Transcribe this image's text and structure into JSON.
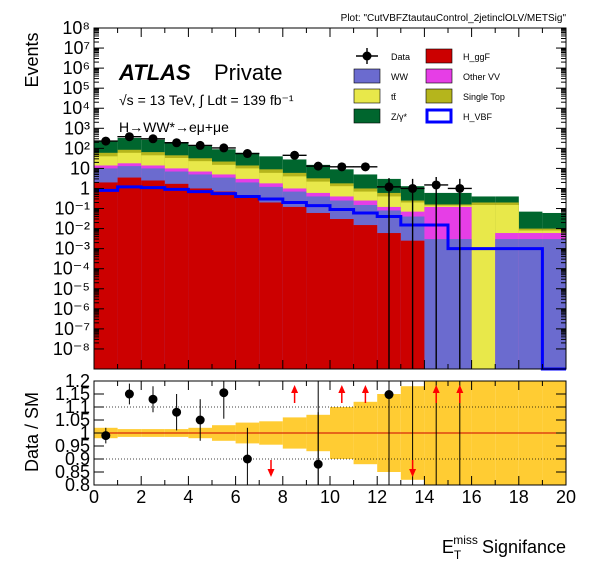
{
  "plot_label": "Plot: \"CutVBFZtautauControl_2jetinclOLV/METSig\"",
  "atlas": {
    "brand": "ATLAS",
    "status": "Private"
  },
  "energy_text": "√s = 13 TeV, ∫ Ldt = 139 fb⁻¹",
  "process_text": "H→WW*→eμ+μe",
  "colors": {
    "ggF": "#cc0000",
    "WW": "#6b6bcf",
    "OtherVV": "#e63ee6",
    "ttbar": "#e8e84a",
    "SingleTop": "#b5b51c",
    "Zgamma": "#00662e",
    "VBF": "#0000ff",
    "band": "#ffcc33",
    "ratio_line": "#cc0000"
  },
  "chart_data": [
    {
      "type": "area",
      "subtype": "stacked-histogram",
      "ylabel": "Events",
      "yscale": "log",
      "ylim": [
        1e-09,
        100000000.0
      ],
      "xlim": [
        0,
        20
      ],
      "bin_edges": [
        0,
        1,
        2,
        3,
        4,
        5,
        6,
        7,
        8,
        9,
        10,
        11,
        12,
        13,
        14,
        15,
        16,
        17,
        18,
        19,
        20
      ],
      "y_tick_labels": [
        "10⁻⁸",
        "10⁻⁷",
        "10⁻⁶",
        "10⁻⁵",
        "10⁻⁴",
        "10⁻³",
        "10⁻²",
        "10⁻¹",
        "1",
        "10",
        "10²",
        "10³",
        "10⁴",
        "10⁵",
        "10⁶",
        "10⁷",
        "10⁸"
      ],
      "legend": [
        {
          "key": "data",
          "label": "Data",
          "style": "marker"
        },
        {
          "key": "ggF",
          "label": "H_ggF",
          "style": "fill"
        },
        {
          "key": "WW",
          "label": "WW",
          "style": "fill"
        },
        {
          "key": "OtherVV",
          "label": "Other VV",
          "style": "fill"
        },
        {
          "key": "ttbar",
          "label": "tt̄",
          "style": "fill"
        },
        {
          "key": "SingleTop",
          "label": "Single Top",
          "style": "fill"
        },
        {
          "key": "Zgamma",
          "label": "Z/γ*",
          "style": "fill"
        },
        {
          "key": "VBF",
          "label": "H_VBF",
          "style": "outline"
        }
      ],
      "stack_totals": [
        {
          "key": "ggF",
          "values": [
            2.0,
            3.5,
            2.5,
            1.7,
            1.0,
            0.7,
            0.4,
            0.2,
            0.12,
            0.06,
            0.03,
            0.015,
            0.006,
            0.0025,
            1e-10,
            1e-10,
            1e-10,
            1e-10,
            1e-10,
            1e-10
          ]
        },
        {
          "key": "WW",
          "values": [
            10,
            13,
            10,
            7,
            5,
            3.5,
            2,
            1.2,
            0.7,
            0.4,
            0.25,
            0.15,
            0.08,
            0.04,
            0.003,
            0.003,
            1e-10,
            0.003,
            0.003,
            0.003
          ]
        },
        {
          "key": "OtherVV",
          "values": [
            14,
            18,
            14,
            10,
            7,
            5,
            3,
            1.8,
            1.0,
            0.6,
            0.4,
            0.25,
            0.12,
            0.07,
            0.12,
            0.12,
            1e-10,
            0.006,
            0.006,
            0.006
          ]
        },
        {
          "key": "ttbar",
          "values": [
            40,
            60,
            45,
            33,
            23,
            15,
            10,
            6,
            4,
            2.2,
            1.3,
            0.7,
            0.4,
            0.2,
            0.14,
            0.14,
            0.15,
            0.15,
            0.008,
            0.008
          ]
        },
        {
          "key": "SingleTop",
          "values": [
            60,
            85,
            65,
            45,
            32,
            22,
            14,
            9,
            6,
            3.2,
            1.8,
            1.0,
            0.6,
            0.25,
            0.16,
            0.16,
            0.2,
            0.2,
            0.01,
            0.01
          ]
        },
        {
          "key": "Zgamma",
          "values": [
            220,
            330,
            270,
            180,
            130,
            90,
            60,
            40,
            28,
            15,
            9,
            5,
            3,
            1.3,
            0.6,
            0.6,
            0.4,
            0.4,
            0.07,
            0.06
          ]
        }
      ],
      "vbf_line": [
        0.8,
        1.2,
        1.1,
        0.9,
        0.7,
        0.55,
        0.4,
        0.3,
        0.2,
        0.14,
        0.09,
        0.06,
        0.04,
        0.015,
        0.015,
        0.001,
        0.001,
        0.001,
        0.001,
        1e-10
      ],
      "data_points": [
        {
          "x": 0.5,
          "y": 230
        },
        {
          "x": 1.5,
          "y": 380
        },
        {
          "x": 2.5,
          "y": 300
        },
        {
          "x": 3.5,
          "y": 190
        },
        {
          "x": 4.5,
          "y": 140
        },
        {
          "x": 5.5,
          "y": 105
        },
        {
          "x": 6.5,
          "y": 55
        },
        {
          "x": 8.5,
          "y": 45
        },
        {
          "x": 9.5,
          "y": 13
        },
        {
          "x": 10.5,
          "y": 12
        },
        {
          "x": 11.5,
          "y": 12
        },
        {
          "x": 12.5,
          "y": 1.2
        },
        {
          "x": 13.5,
          "y": 1.0
        },
        {
          "x": 14.5,
          "y": 1.5
        },
        {
          "x": 15.5,
          "y": 1.0
        }
      ]
    },
    {
      "type": "scatter",
      "subtype": "ratio",
      "ylabel": "Data / SM",
      "xlabel": "E_T^miss Signifance",
      "xlim": [
        0,
        20
      ],
      "ylim": [
        0.8,
        1.2
      ],
      "y_ticks": [
        0.8,
        0.85,
        0.9,
        0.95,
        1,
        1.05,
        1.1,
        1.15,
        1.2
      ],
      "x_ticks": [
        0,
        2,
        4,
        6,
        8,
        10,
        12,
        14,
        16,
        18,
        20
      ],
      "gridlines": [
        0.9,
        1.1
      ],
      "reference_line": 1.0,
      "band_halfwidth": [
        0.02,
        0.015,
        0.015,
        0.015,
        0.02,
        0.03,
        0.04,
        0.045,
        0.06,
        0.07,
        0.1,
        0.12,
        0.15,
        0.18,
        0.21,
        0.21,
        0.25,
        0.25,
        0.3,
        0.3
      ],
      "points": [
        {
          "x": 0.5,
          "y": 0.99,
          "err": 0.03
        },
        {
          "x": 1.5,
          "y": 1.15,
          "err": 0.04
        },
        {
          "x": 2.5,
          "y": 1.13,
          "err": 0.05
        },
        {
          "x": 3.5,
          "y": 1.08,
          "err": 0.07
        },
        {
          "x": 4.5,
          "y": 1.05,
          "err": 0.08
        },
        {
          "x": 5.5,
          "y": 1.155,
          "err": 0.1
        },
        {
          "x": 6.5,
          "y": 0.9,
          "err": 0.12
        },
        {
          "x": 9.5,
          "y": 0.88,
          "err": 0.2
        },
        {
          "x": 12.5,
          "y": 1.148,
          "err": 0.5
        }
      ],
      "up_arrows": [
        8.5,
        10.5,
        11.5,
        14.5,
        15.5
      ],
      "down_arrows": [
        7.5,
        13.5
      ],
      "upper_error_lines": [
        9.5,
        12.5,
        13.5,
        14.5,
        15.5
      ]
    }
  ]
}
